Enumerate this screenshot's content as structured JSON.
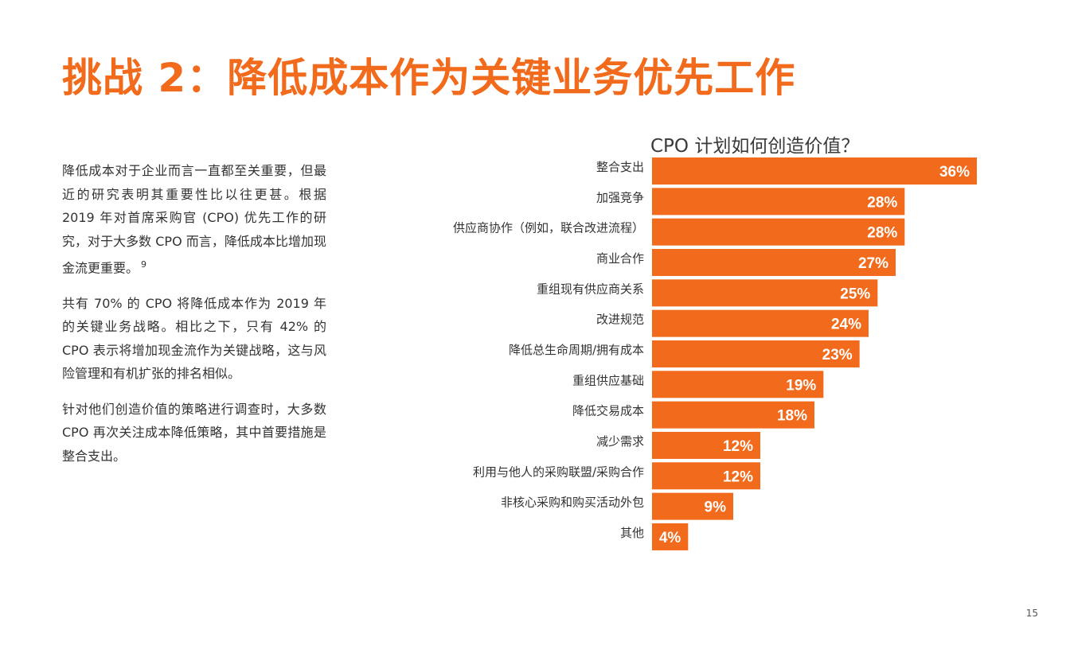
{
  "page": {
    "title": "挑战 2：降低成本作为关键业务优先工作",
    "paragraphs": [
      {
        "text": "降低成本对于企业而言一直都至关重要，但最近的研究表明其重要性比以往更甚。根据 2019 年对首席采购官 (CPO) 优先工作的研究，对于大多数 CPO 而言，降低成本比增加现金流更重要。",
        "footnote": "9"
      },
      {
        "text": "共有 70% 的 CPO 将降低成本作为 2019 年的关键业务战略。相比之下，只有 42% 的 CPO 表示将增加现金流作为关键战略，这与风险管理和有机扩张的排名相似。"
      },
      {
        "text": "针对他们创造价值的策略进行调查时，大多数 CPO 再次关注成本降低策略，其中首要措施是整合支出。"
      }
    ],
    "page_number": "15"
  },
  "chart_data": {
    "type": "bar",
    "orientation": "horizontal",
    "title": "CPO 计划如何创造价值？",
    "categories": [
      "整合支出",
      "加强竞争",
      "供应商协作（例如，联合改进流程）",
      "商业合作",
      "重组现有供应商关系",
      "改进规范",
      "降低总生命周期/拥有成本",
      "重组供应基础",
      "降低交易成本",
      "减少需求",
      "利用与他人的采购联盟/采购合作",
      "非核心采购和购买活动外包",
      "其他"
    ],
    "values": [
      36,
      28,
      28,
      27,
      25,
      24,
      23,
      19,
      18,
      12,
      12,
      9,
      4
    ],
    "value_labels": [
      "36%",
      "28%",
      "28%",
      "27%",
      "25%",
      "24%",
      "23%",
      "19%",
      "18%",
      "12%",
      "12%",
      "9%",
      "4%"
    ],
    "unit": "%",
    "xlim": [
      0,
      36
    ],
    "bar_color": "#f26a1b",
    "label_color": "#ffffff",
    "grid": false,
    "legend": "none"
  }
}
